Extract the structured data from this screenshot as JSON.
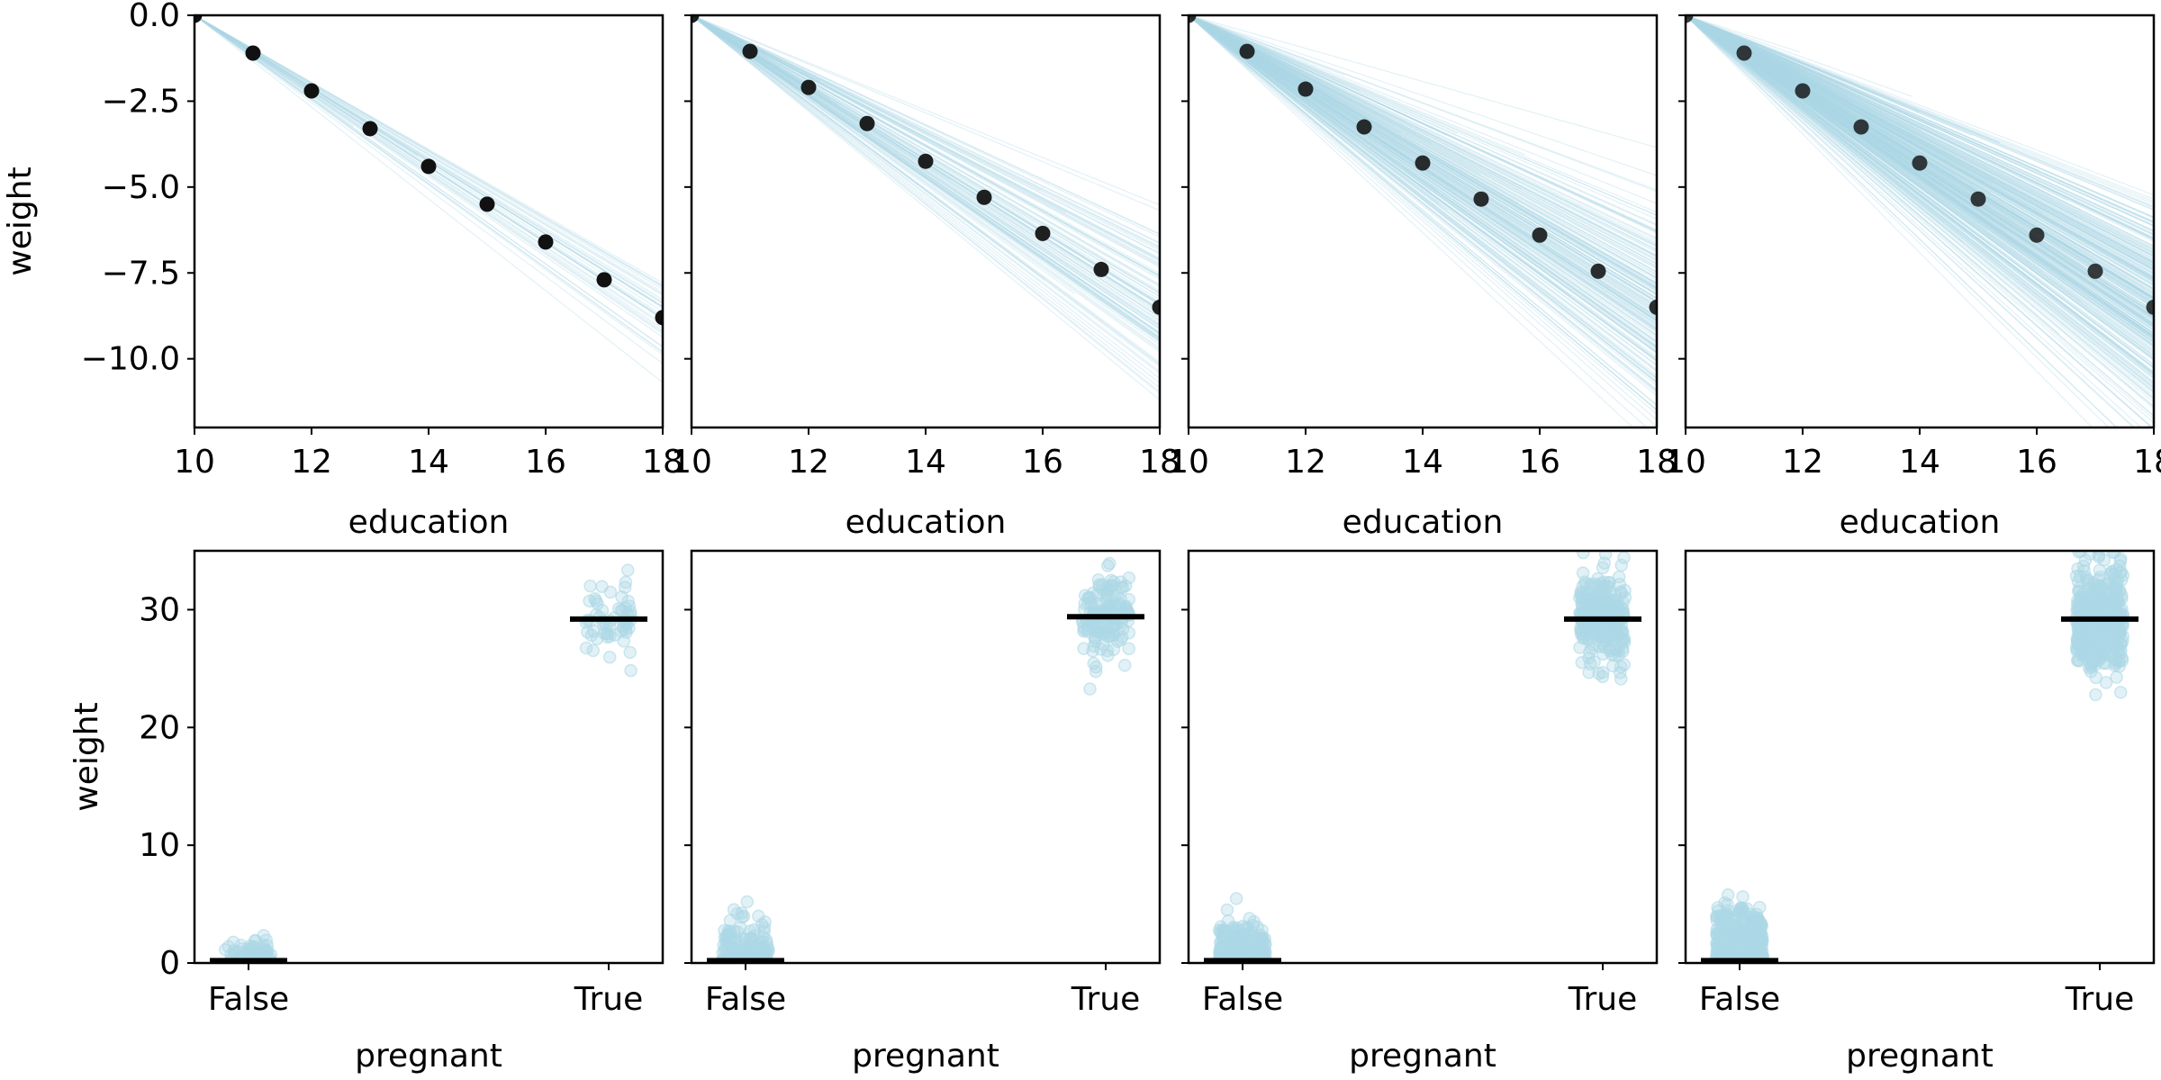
{
  "colors": {
    "accent": "#add8e6",
    "mean": "#000000",
    "frame": "#000000"
  },
  "chart_data": [
    {
      "type": "line",
      "panel": "top-1",
      "xlabel": "education",
      "ylabel": "weight",
      "xlim": [
        10,
        18
      ],
      "ylim": [
        -12,
        0
      ],
      "xticks": [
        "10",
        "12",
        "14",
        "16",
        "18"
      ],
      "yticks": [
        "0.0",
        "−2.5",
        "−5.0",
        "−7.5",
        "−10.0"
      ],
      "ytick_values": [
        0,
        -2.5,
        -5,
        -7.5,
        -10
      ],
      "points": {
        "x": [
          10,
          11,
          12,
          13,
          14,
          15,
          16,
          17,
          18
        ],
        "y": [
          0,
          -1.1,
          -2.2,
          -3.3,
          -4.4,
          -5.5,
          -6.6,
          -7.7,
          -8.8
        ]
      },
      "mean_slope": -1.1,
      "slope_spread": 0.09,
      "n_lines": 40
    },
    {
      "type": "line",
      "panel": "top-2",
      "xlabel": "education",
      "ylabel": "",
      "xlim": [
        10,
        18
      ],
      "ylim": [
        -12,
        0
      ],
      "xticks": [
        "10",
        "12",
        "14",
        "16",
        "18"
      ],
      "points": {
        "x": [
          10,
          11,
          12,
          13,
          14,
          15,
          16,
          17,
          18
        ],
        "y": [
          0,
          -1.05,
          -2.1,
          -3.15,
          -4.25,
          -5.3,
          -6.35,
          -7.4,
          -8.5
        ]
      },
      "mean_slope": -1.06,
      "slope_spread": 0.14,
      "n_lines": 110
    },
    {
      "type": "line",
      "panel": "top-3",
      "xlabel": "education",
      "ylabel": "",
      "xlim": [
        10,
        18
      ],
      "ylim": [
        -12,
        0
      ],
      "xticks": [
        "10",
        "12",
        "14",
        "16",
        "18"
      ],
      "points": {
        "x": [
          10,
          11,
          12,
          13,
          14,
          15,
          16,
          17,
          18
        ],
        "y": [
          0,
          -1.05,
          -2.15,
          -3.25,
          -4.3,
          -5.35,
          -6.4,
          -7.45,
          -8.5
        ]
      },
      "mean_slope": -1.06,
      "slope_spread": 0.18,
      "n_lines": 220
    },
    {
      "type": "line",
      "panel": "top-4",
      "xlabel": "education",
      "ylabel": "",
      "xlim": [
        10,
        18
      ],
      "ylim": [
        -12,
        0
      ],
      "xticks": [
        "10",
        "12",
        "14",
        "16",
        "18"
      ],
      "points": {
        "x": [
          10,
          11,
          12,
          13,
          14,
          15,
          16,
          17,
          18
        ],
        "y": [
          0,
          -1.1,
          -2.2,
          -3.25,
          -4.3,
          -5.35,
          -6.4,
          -7.45,
          -8.5
        ]
      },
      "mean_slope": -1.06,
      "slope_spread": 0.2,
      "n_lines": 400
    },
    {
      "type": "scatter",
      "panel": "bottom-1",
      "xlabel": "pregnant",
      "ylabel": "weight",
      "categories": [
        "False",
        "True"
      ],
      "ylim": [
        0,
        35
      ],
      "yticks": [
        "0",
        "10",
        "20",
        "30"
      ],
      "ytick_values": [
        0,
        10,
        20,
        30
      ],
      "means": [
        0.2,
        29.2
      ],
      "spread": [
        1.0,
        1.5
      ],
      "n_points": 60
    },
    {
      "type": "scatter",
      "panel": "bottom-2",
      "xlabel": "pregnant",
      "ylabel": "",
      "categories": [
        "False",
        "True"
      ],
      "ylim": [
        0,
        35
      ],
      "means": [
        0.2,
        29.4
      ],
      "spread": [
        1.6,
        1.9
      ],
      "n_points": 140
    },
    {
      "type": "scatter",
      "panel": "bottom-3",
      "xlabel": "pregnant",
      "ylabel": "",
      "categories": [
        "False",
        "True"
      ],
      "ylim": [
        0,
        35
      ],
      "means": [
        0.2,
        29.2
      ],
      "spread": [
        1.5,
        1.9
      ],
      "n_points": 280
    },
    {
      "type": "scatter",
      "panel": "bottom-4",
      "xlabel": "pregnant",
      "ylabel": "",
      "categories": [
        "False",
        "True"
      ],
      "ylim": [
        0,
        35
      ],
      "means": [
        0.2,
        29.2
      ],
      "spread": [
        2.0,
        2.3
      ],
      "n_points": 450
    }
  ]
}
